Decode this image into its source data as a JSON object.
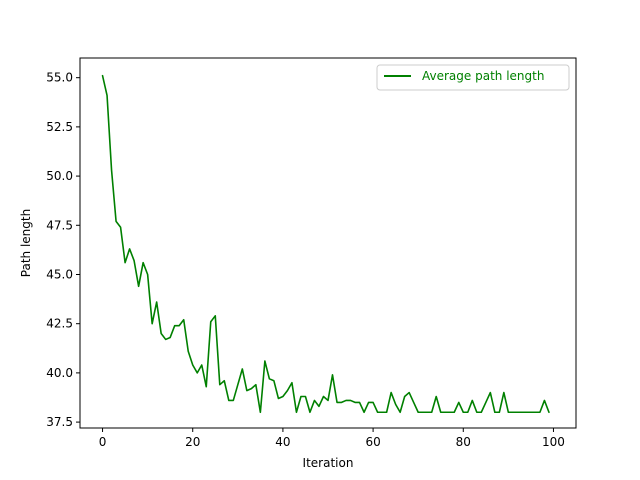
{
  "chart_data": {
    "type": "line",
    "title": "",
    "xlabel": "Iteration",
    "ylabel": "Path length",
    "xlim": [
      -5,
      105
    ],
    "ylim": [
      37.2,
      56.0
    ],
    "xticks": [
      0,
      20,
      40,
      60,
      80,
      100
    ],
    "yticks": [
      37.5,
      40.0,
      42.5,
      45.0,
      47.5,
      50.0,
      52.5,
      55.0
    ],
    "xtick_labels": [
      "0",
      "20",
      "40",
      "60",
      "80",
      "100"
    ],
    "ytick_labels": [
      "37.5",
      "40.0",
      "42.5",
      "45.0",
      "47.5",
      "50.0",
      "52.5",
      "55.0"
    ],
    "grid": false,
    "legend": {
      "placement": "upper right"
    },
    "series": [
      {
        "name": "Average path length",
        "color": "#008000",
        "x": [
          0,
          1,
          2,
          3,
          4,
          5,
          6,
          7,
          8,
          9,
          10,
          11,
          12,
          13,
          14,
          15,
          16,
          17,
          18,
          19,
          20,
          21,
          22,
          23,
          24,
          25,
          26,
          27,
          28,
          29,
          30,
          31,
          32,
          33,
          34,
          35,
          36,
          37,
          38,
          39,
          40,
          41,
          42,
          43,
          44,
          45,
          46,
          47,
          48,
          49,
          50,
          51,
          52,
          53,
          54,
          55,
          56,
          57,
          58,
          59,
          60,
          61,
          62,
          63,
          64,
          65,
          66,
          67,
          68,
          69,
          70,
          71,
          72,
          73,
          74,
          75,
          76,
          77,
          78,
          79,
          80,
          81,
          82,
          83,
          84,
          85,
          86,
          87,
          88,
          89,
          90,
          91,
          92,
          93,
          94,
          95,
          96,
          97,
          98,
          99
        ],
        "values": [
          55.1,
          54.1,
          50.3,
          47.7,
          47.4,
          45.6,
          46.3,
          45.7,
          44.4,
          45.6,
          45.0,
          42.5,
          43.6,
          42.0,
          41.7,
          41.8,
          42.4,
          42.4,
          42.7,
          41.1,
          40.4,
          40.0,
          40.4,
          39.3,
          42.6,
          42.9,
          39.4,
          39.6,
          38.6,
          38.6,
          39.4,
          40.2,
          39.1,
          39.2,
          39.4,
          38.0,
          40.6,
          39.7,
          39.6,
          38.7,
          38.8,
          39.1,
          39.5,
          38.0,
          38.8,
          38.8,
          38.0,
          38.6,
          38.3,
          38.8,
          38.6,
          39.9,
          38.5,
          38.5,
          38.6,
          38.6,
          38.5,
          38.5,
          38.0,
          38.5,
          38.5,
          38.0,
          38.0,
          38.0,
          39.0,
          38.4,
          38.0,
          38.8,
          39.0,
          38.5,
          38.0,
          38.0,
          38.0,
          38.0,
          38.8,
          38.0,
          38.0,
          38.0,
          38.0,
          38.5,
          38.0,
          38.0,
          38.6,
          38.0,
          38.0,
          38.5,
          39.0,
          38.0,
          38.0,
          39.0,
          38.0,
          38.0,
          38.0,
          38.0,
          38.0,
          38.0,
          38.0,
          38.0,
          38.6,
          38.0
        ]
      }
    ]
  }
}
